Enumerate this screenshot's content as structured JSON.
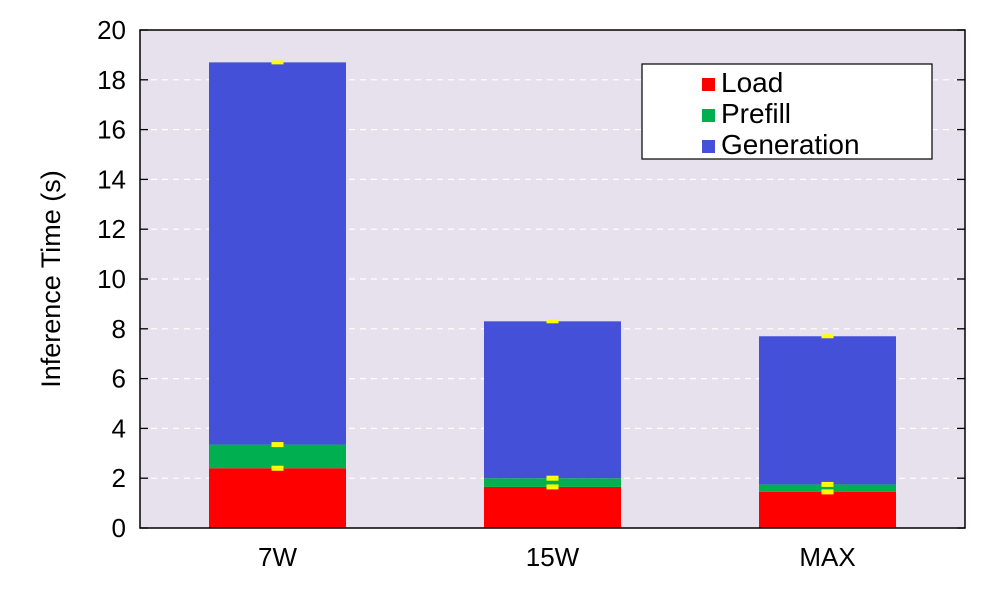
{
  "chart_data": {
    "type": "bar",
    "stacked": true,
    "title": "",
    "xlabel": "",
    "ylabel": "Inference Time (s)",
    "ylim": [
      0,
      20
    ],
    "yticks": [
      "0",
      "2",
      "4",
      "6",
      "8",
      "10",
      "12",
      "14",
      "16",
      "18",
      "20"
    ],
    "grid": true,
    "legend_position": "top-right",
    "categories": [
      "7W",
      "15W",
      "MAX"
    ],
    "series": [
      {
        "name": "Load",
        "color": "#ff0000",
        "values": [
          2.4,
          1.65,
          1.45
        ],
        "errors": [
          0.05,
          0.05,
          0.05
        ]
      },
      {
        "name": "Prefill",
        "color": "#00b050",
        "values": [
          0.95,
          0.35,
          0.3
        ],
        "errors": [
          0.05,
          0.05,
          0.05
        ]
      },
      {
        "name": "Generation",
        "color": "#4450d8",
        "values": [
          15.35,
          6.3,
          5.95
        ],
        "errors": [
          0.03,
          0.03,
          0.03
        ]
      }
    ],
    "plot_background": "#e6e1ec",
    "errorbar_color": "#ffff00"
  }
}
